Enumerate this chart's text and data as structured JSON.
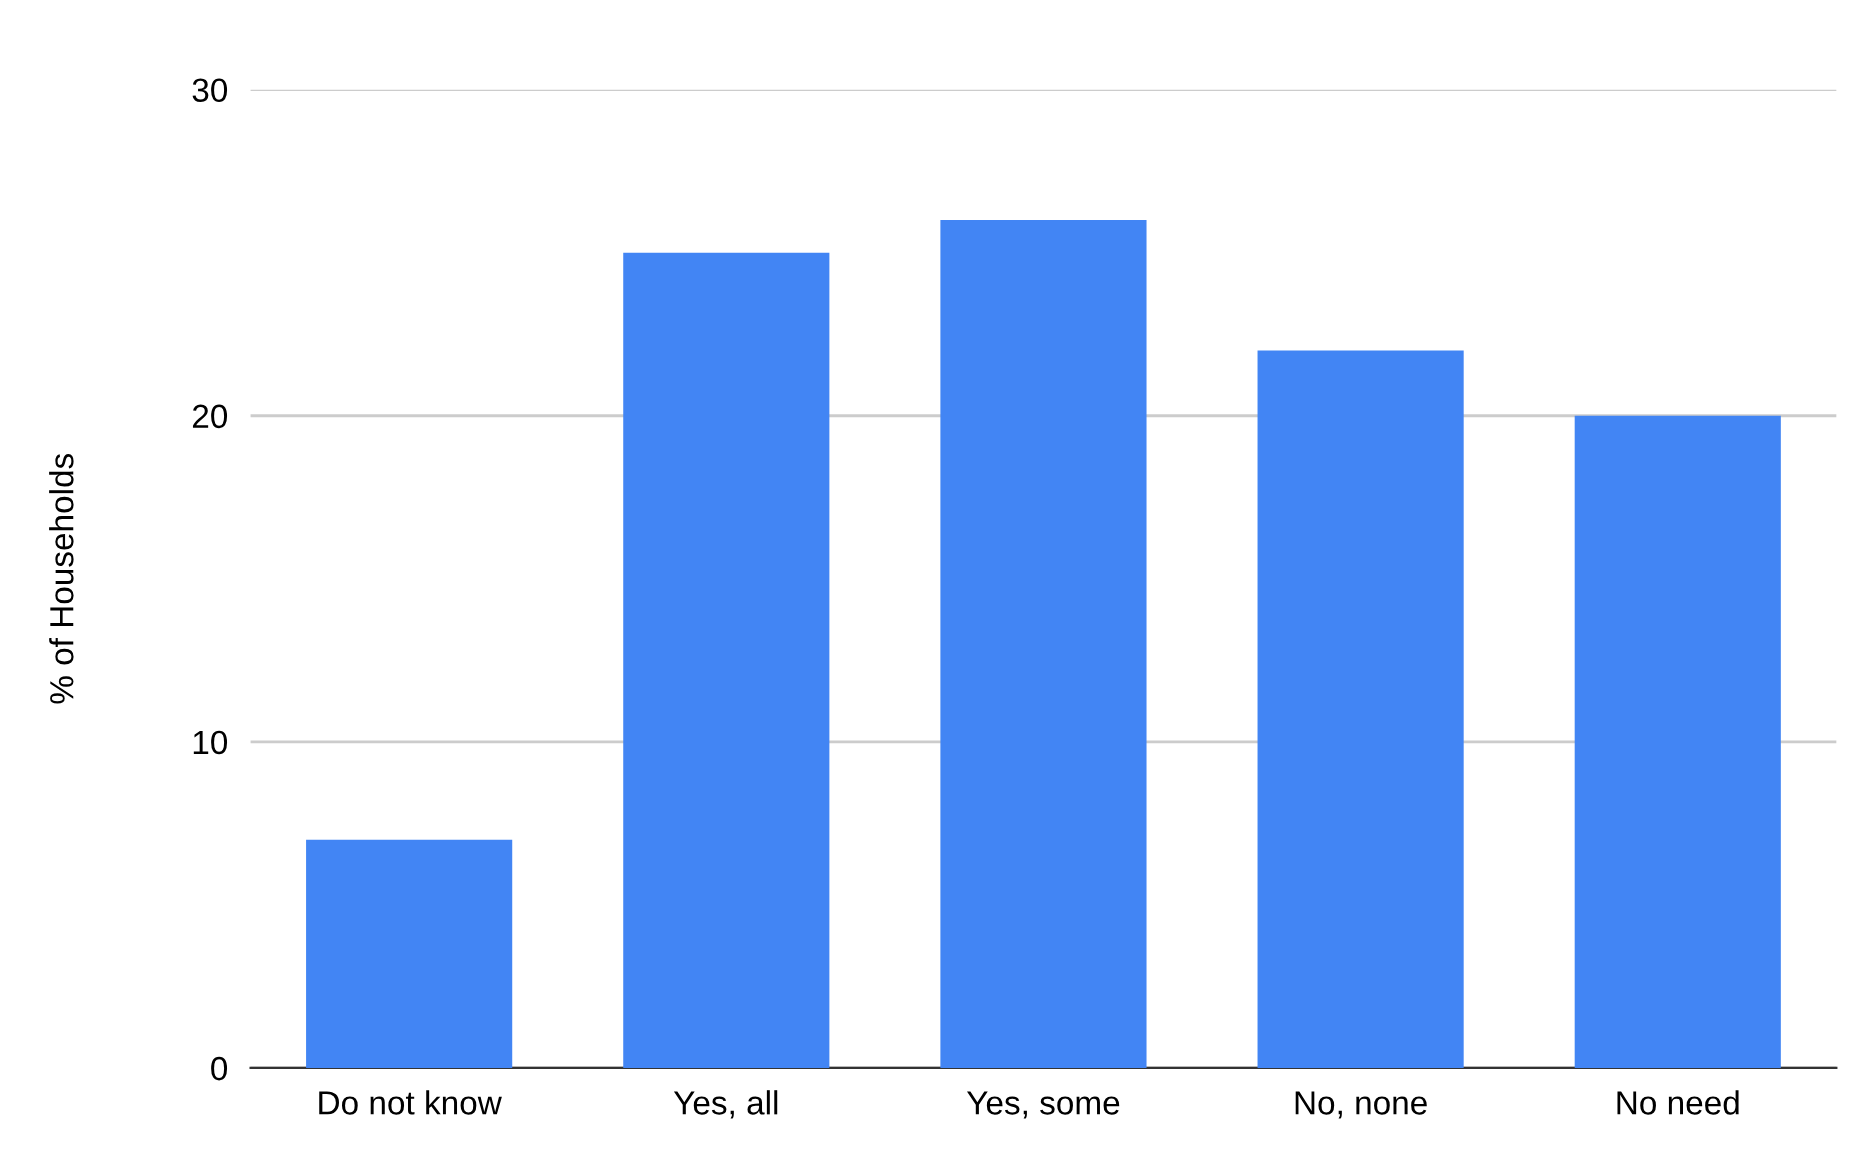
{
  "chart_data": {
    "type": "bar",
    "ylabel": "% of Households",
    "categories": [
      "Do not know",
      "Yes, all",
      "Yes, some",
      "No, none",
      "No need"
    ],
    "values": [
      7,
      25,
      26,
      22,
      20
    ],
    "color": "#4285f4",
    "ylim": [
      0,
      30
    ],
    "yticks": [
      0,
      10,
      20,
      30
    ],
    "grid": "y",
    "legend": false
  }
}
